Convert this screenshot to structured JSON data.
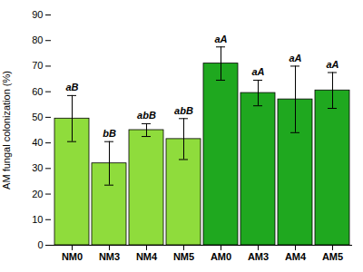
{
  "chart_data": {
    "type": "bar",
    "categories": [
      "NM0",
      "NM3",
      "NM4",
      "NM5",
      "AM0",
      "AM3",
      "AM4",
      "AM5"
    ],
    "values": [
      49.5,
      32.0,
      45.0,
      41.5,
      71.0,
      59.5,
      57.0,
      60.5
    ],
    "errors": [
      9.0,
      8.5,
      2.5,
      8.0,
      6.5,
      5.0,
      13.0,
      7.0
    ],
    "colors": [
      "#8fdc3c",
      "#8fdc3c",
      "#8fdc3c",
      "#8fdc3c",
      "#1fa81f",
      "#1fa81f",
      "#1fa81f",
      "#1fa81f"
    ],
    "annotations": [
      "aB",
      "bB",
      "abB",
      "abB",
      "aA",
      "aA",
      "aA",
      "aA"
    ],
    "ylabel": "AM fungal colonization (%)",
    "ylim": [
      0,
      90
    ],
    "yticks": [
      0,
      10,
      20,
      30,
      40,
      50,
      60,
      70,
      80,
      90
    ],
    "grid": false
  }
}
